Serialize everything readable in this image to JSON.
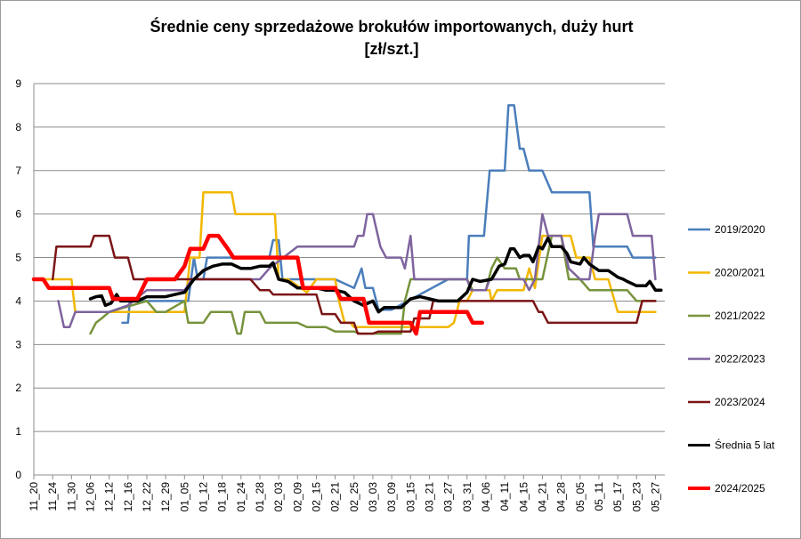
{
  "chart_data": {
    "type": "line",
    "title": "Średnie ceny sprzedażowe brokułów importowanych, duży hurt",
    "subtitle": "[zł/szt.]",
    "xlabel": "",
    "ylabel": "",
    "ylim": [
      0,
      9
    ],
    "yticks": [
      0,
      1,
      2,
      3,
      4,
      5,
      6,
      7,
      8,
      9
    ],
    "grid": true,
    "legend_position": "right",
    "x_tick_labels": [
      "11_20",
      "11_24",
      "11_30",
      "12_06",
      "12_12",
      "12_16",
      "12_22",
      "12_29",
      "01_05",
      "01_12",
      "01_18",
      "01_24",
      "01_28",
      "02_03",
      "02_09",
      "02_15",
      "02_21",
      "02_25",
      "03_03",
      "03_09",
      "03_15",
      "03_21",
      "03_27",
      "03_31",
      "04_06",
      "04_11",
      "04_15",
      "04_21",
      "04_28",
      "05_05",
      "05_11",
      "05_17",
      "05_23",
      "05_27"
    ],
    "series": [
      {
        "name": "2019/2020",
        "color": "#4a7ebb",
        "width": 2.5,
        "values": [
          [
            4.7,
            3.5
          ],
          [
            4.8,
            3.5
          ],
          [
            5.0,
            3.5
          ],
          [
            5.1,
            4.0
          ],
          [
            7.8,
            4.0
          ],
          [
            8.0,
            4.0
          ],
          [
            8.2,
            4.0
          ],
          [
            8.5,
            5.0
          ],
          [
            8.7,
            4.5
          ],
          [
            9.0,
            4.5
          ],
          [
            9.2,
            5.0
          ],
          [
            9.5,
            5.0
          ],
          [
            10.5,
            5.0
          ],
          [
            11.0,
            5.0
          ],
          [
            12.5,
            5.0
          ],
          [
            12.7,
            5.4
          ],
          [
            13.0,
            5.4
          ],
          [
            13.2,
            4.5
          ],
          [
            14.0,
            4.5
          ],
          [
            16.0,
            4.5
          ],
          [
            17.0,
            4.3
          ],
          [
            17.4,
            4.75
          ],
          [
            17.6,
            4.3
          ],
          [
            18.0,
            4.3
          ],
          [
            18.3,
            3.8
          ],
          [
            19.0,
            3.8
          ],
          [
            22.0,
            4.5
          ],
          [
            23.0,
            4.5
          ],
          [
            23.1,
            5.5
          ],
          [
            23.9,
            5.5
          ],
          [
            24.2,
            7.0
          ],
          [
            25.0,
            7.0
          ],
          [
            25.2,
            8.5
          ],
          [
            25.5,
            8.5
          ],
          [
            25.8,
            7.5
          ],
          [
            26.0,
            7.5
          ],
          [
            26.3,
            7.0
          ],
          [
            27.0,
            7.0
          ],
          [
            27.5,
            6.5
          ],
          [
            29.5,
            6.5
          ],
          [
            29.7,
            5.25
          ],
          [
            31.5,
            5.25
          ],
          [
            31.8,
            5.0
          ],
          [
            33.0,
            5.0
          ]
        ]
      },
      {
        "name": "2020/2021",
        "color": "#f2b700",
        "width": 2.5,
        "values": [
          [
            0.0,
            4.5
          ],
          [
            2.0,
            4.5
          ],
          [
            2.2,
            3.75
          ],
          [
            8.0,
            3.75
          ],
          [
            8.3,
            5.0
          ],
          [
            8.8,
            5.0
          ],
          [
            9.0,
            6.5
          ],
          [
            10.5,
            6.5
          ],
          [
            10.7,
            6.0
          ],
          [
            12.8,
            6.0
          ],
          [
            13.0,
            4.5
          ],
          [
            13.5,
            4.5
          ],
          [
            14.5,
            4.2
          ],
          [
            15.0,
            4.5
          ],
          [
            16.0,
            4.5
          ],
          [
            16.2,
            4.0
          ],
          [
            16.5,
            3.5
          ],
          [
            16.8,
            3.5
          ],
          [
            17.0,
            3.4
          ],
          [
            22.0,
            3.4
          ],
          [
            22.3,
            3.5
          ],
          [
            22.6,
            4.0
          ],
          [
            23.0,
            4.0
          ],
          [
            23.3,
            4.25
          ],
          [
            24.2,
            4.25
          ],
          [
            24.3,
            4.0
          ],
          [
            24.6,
            4.25
          ],
          [
            26.0,
            4.25
          ],
          [
            26.3,
            4.75
          ],
          [
            26.6,
            4.3
          ],
          [
            27.0,
            5.5
          ],
          [
            28.5,
            5.5
          ],
          [
            28.8,
            5.0
          ],
          [
            29.5,
            5.0
          ],
          [
            29.8,
            4.5
          ],
          [
            30.5,
            4.5
          ],
          [
            31.0,
            3.75
          ],
          [
            33.0,
            3.75
          ]
        ]
      },
      {
        "name": "2021/2022",
        "color": "#77933c",
        "width": 2.5,
        "values": [
          [
            3.0,
            3.25
          ],
          [
            3.3,
            3.5
          ],
          [
            3.6,
            3.6
          ],
          [
            4.0,
            3.75
          ],
          [
            6.0,
            4.0
          ],
          [
            6.5,
            3.75
          ],
          [
            7.0,
            3.75
          ],
          [
            8.0,
            4.0
          ],
          [
            8.2,
            3.5
          ],
          [
            9.0,
            3.5
          ],
          [
            9.4,
            3.75
          ],
          [
            10.5,
            3.75
          ],
          [
            10.8,
            3.25
          ],
          [
            11.0,
            3.25
          ],
          [
            11.2,
            3.75
          ],
          [
            12.0,
            3.75
          ],
          [
            12.3,
            3.5
          ],
          [
            14.0,
            3.5
          ],
          [
            14.5,
            3.4
          ],
          [
            15.5,
            3.4
          ],
          [
            16.0,
            3.3
          ],
          [
            17.0,
            3.3
          ],
          [
            17.3,
            3.25
          ],
          [
            19.5,
            3.25
          ],
          [
            19.7,
            4.0
          ],
          [
            20.0,
            4.5
          ],
          [
            22.0,
            4.5
          ],
          [
            23.0,
            4.5
          ],
          [
            23.3,
            4.25
          ],
          [
            24.0,
            4.25
          ],
          [
            24.3,
            4.75
          ],
          [
            24.6,
            5.0
          ],
          [
            25.0,
            4.75
          ],
          [
            25.6,
            4.75
          ],
          [
            25.8,
            4.5
          ],
          [
            27.0,
            4.5
          ],
          [
            27.5,
            5.5
          ],
          [
            28.0,
            5.5
          ],
          [
            28.4,
            4.5
          ],
          [
            29.0,
            4.5
          ],
          [
            29.5,
            4.25
          ],
          [
            31.5,
            4.25
          ],
          [
            32.0,
            4.0
          ],
          [
            33.0,
            4.0
          ]
        ]
      },
      {
        "name": "2022/2023",
        "color": "#7e649e",
        "width": 2.5,
        "values": [
          [
            1.3,
            4.0
          ],
          [
            1.6,
            3.4
          ],
          [
            1.9,
            3.4
          ],
          [
            2.2,
            3.75
          ],
          [
            4.0,
            3.75
          ],
          [
            5.0,
            3.9
          ],
          [
            6.0,
            4.25
          ],
          [
            8.0,
            4.25
          ],
          [
            8.4,
            4.5
          ],
          [
            12.0,
            4.5
          ],
          [
            12.5,
            4.75
          ],
          [
            14.0,
            5.25
          ],
          [
            17.0,
            5.25
          ],
          [
            17.2,
            5.5
          ],
          [
            17.5,
            5.5
          ],
          [
            17.7,
            6.0
          ],
          [
            18.0,
            6.0
          ],
          [
            18.4,
            5.25
          ],
          [
            18.7,
            5.0
          ],
          [
            19.5,
            5.0
          ],
          [
            19.7,
            4.75
          ],
          [
            20.0,
            5.5
          ],
          [
            20.2,
            4.5
          ],
          [
            22.0,
            4.5
          ],
          [
            23.0,
            4.5
          ],
          [
            23.2,
            4.25
          ],
          [
            24.0,
            4.25
          ],
          [
            24.2,
            4.5
          ],
          [
            25.5,
            4.5
          ],
          [
            26.0,
            4.5
          ],
          [
            26.3,
            4.25
          ],
          [
            26.6,
            4.5
          ],
          [
            27.0,
            6.0
          ],
          [
            27.3,
            5.5
          ],
          [
            28.0,
            5.5
          ],
          [
            28.4,
            4.75
          ],
          [
            29.0,
            4.5
          ],
          [
            29.5,
            4.5
          ],
          [
            29.8,
            5.5
          ],
          [
            30.0,
            6.0
          ],
          [
            31.5,
            6.0
          ],
          [
            31.8,
            5.5
          ],
          [
            32.8,
            5.5
          ],
          [
            33.0,
            4.5
          ]
        ]
      },
      {
        "name": "2023/2024",
        "color": "#7b1516",
        "width": 2.5,
        "values": [
          [
            1.0,
            4.5
          ],
          [
            1.2,
            5.25
          ],
          [
            3.0,
            5.25
          ],
          [
            3.2,
            5.5
          ],
          [
            4.0,
            5.5
          ],
          [
            4.3,
            5.0
          ],
          [
            5.0,
            5.0
          ],
          [
            5.3,
            4.5
          ],
          [
            11.5,
            4.5
          ],
          [
            12.0,
            4.25
          ],
          [
            12.5,
            4.25
          ],
          [
            12.7,
            4.15
          ],
          [
            15.0,
            4.15
          ],
          [
            15.3,
            3.7
          ],
          [
            16.0,
            3.7
          ],
          [
            16.3,
            3.5
          ],
          [
            17.0,
            3.5
          ],
          [
            17.2,
            3.25
          ],
          [
            18.0,
            3.25
          ],
          [
            18.3,
            3.3
          ],
          [
            20.0,
            3.3
          ],
          [
            20.2,
            3.6
          ],
          [
            21.0,
            3.6
          ],
          [
            21.2,
            4.0
          ],
          [
            26.0,
            4.0
          ],
          [
            26.5,
            4.0
          ],
          [
            26.8,
            3.75
          ],
          [
            27.0,
            3.75
          ],
          [
            27.3,
            3.5
          ],
          [
            32.0,
            3.5
          ],
          [
            32.3,
            4.0
          ],
          [
            33.0,
            4.0
          ]
        ]
      },
      {
        "name": "Średnia 5 lat",
        "color": "#000000",
        "width": 3.5,
        "values": [
          [
            3.0,
            4.05
          ],
          [
            3.3,
            4.1
          ],
          [
            3.6,
            4.12
          ],
          [
            3.8,
            3.9
          ],
          [
            4.1,
            3.95
          ],
          [
            4.4,
            4.15
          ],
          [
            4.6,
            4.0
          ],
          [
            5.5,
            4.0
          ],
          [
            6.0,
            4.1
          ],
          [
            7.0,
            4.1
          ],
          [
            7.5,
            4.15
          ],
          [
            8.0,
            4.2
          ],
          [
            8.5,
            4.5
          ],
          [
            9.0,
            4.7
          ],
          [
            9.5,
            4.8
          ],
          [
            10.0,
            4.85
          ],
          [
            10.5,
            4.85
          ],
          [
            11.0,
            4.75
          ],
          [
            11.5,
            4.75
          ],
          [
            12.0,
            4.8
          ],
          [
            12.5,
            4.8
          ],
          [
            12.7,
            4.88
          ],
          [
            13.0,
            4.5
          ],
          [
            13.5,
            4.45
          ],
          [
            14.0,
            4.3
          ],
          [
            14.5,
            4.3
          ],
          [
            15.0,
            4.3
          ],
          [
            15.5,
            4.25
          ],
          [
            16.0,
            4.25
          ],
          [
            16.5,
            4.2
          ],
          [
            17.0,
            4.0
          ],
          [
            17.5,
            3.9
          ],
          [
            18.0,
            4.0
          ],
          [
            18.3,
            3.75
          ],
          [
            18.6,
            3.85
          ],
          [
            19.0,
            3.85
          ],
          [
            19.5,
            3.85
          ],
          [
            20.0,
            4.05
          ],
          [
            20.5,
            4.1
          ],
          [
            21.0,
            4.05
          ],
          [
            21.5,
            4.0
          ],
          [
            22.0,
            4.0
          ],
          [
            22.5,
            4.0
          ],
          [
            23.0,
            4.2
          ],
          [
            23.3,
            4.5
          ],
          [
            23.7,
            4.45
          ],
          [
            24.3,
            4.5
          ],
          [
            24.7,
            4.8
          ],
          [
            25.0,
            4.85
          ],
          [
            25.3,
            5.2
          ],
          [
            25.5,
            5.2
          ],
          [
            25.8,
            5.0
          ],
          [
            26.0,
            5.05
          ],
          [
            26.3,
            5.05
          ],
          [
            26.5,
            4.9
          ],
          [
            26.8,
            5.25
          ],
          [
            27.0,
            5.2
          ],
          [
            27.3,
            5.45
          ],
          [
            27.5,
            5.25
          ],
          [
            28.0,
            5.25
          ],
          [
            28.3,
            5.1
          ],
          [
            28.5,
            4.9
          ],
          [
            29.0,
            4.85
          ],
          [
            29.2,
            5.0
          ],
          [
            29.5,
            4.85
          ],
          [
            30.0,
            4.7
          ],
          [
            30.5,
            4.7
          ],
          [
            31.0,
            4.55
          ],
          [
            31.3,
            4.5
          ],
          [
            31.5,
            4.45
          ],
          [
            32.0,
            4.35
          ],
          [
            32.5,
            4.35
          ],
          [
            32.7,
            4.45
          ],
          [
            33.0,
            4.25
          ],
          [
            33.3,
            4.25
          ]
        ]
      },
      {
        "name": "2024/2025",
        "color": "#ff0000",
        "width": 4.5,
        "values": [
          [
            0.0,
            4.5
          ],
          [
            0.5,
            4.5
          ],
          [
            0.8,
            4.3
          ],
          [
            4.0,
            4.3
          ],
          [
            4.2,
            4.05
          ],
          [
            5.5,
            4.05
          ],
          [
            6.0,
            4.5
          ],
          [
            7.5,
            4.5
          ],
          [
            8.0,
            4.8
          ],
          [
            8.3,
            5.2
          ],
          [
            9.0,
            5.2
          ],
          [
            9.3,
            5.5
          ],
          [
            9.8,
            5.5
          ],
          [
            10.3,
            5.2
          ],
          [
            10.6,
            5.0
          ],
          [
            14.0,
            5.0
          ],
          [
            14.3,
            4.3
          ],
          [
            16.0,
            4.3
          ],
          [
            16.3,
            4.05
          ],
          [
            17.5,
            4.05
          ],
          [
            17.8,
            3.5
          ],
          [
            18.5,
            3.5
          ],
          [
            20.0,
            3.5
          ],
          [
            20.3,
            3.25
          ],
          [
            20.5,
            3.75
          ],
          [
            22.0,
            3.75
          ],
          [
            23.0,
            3.75
          ],
          [
            23.3,
            3.5
          ],
          [
            23.8,
            3.5
          ]
        ]
      }
    ]
  }
}
